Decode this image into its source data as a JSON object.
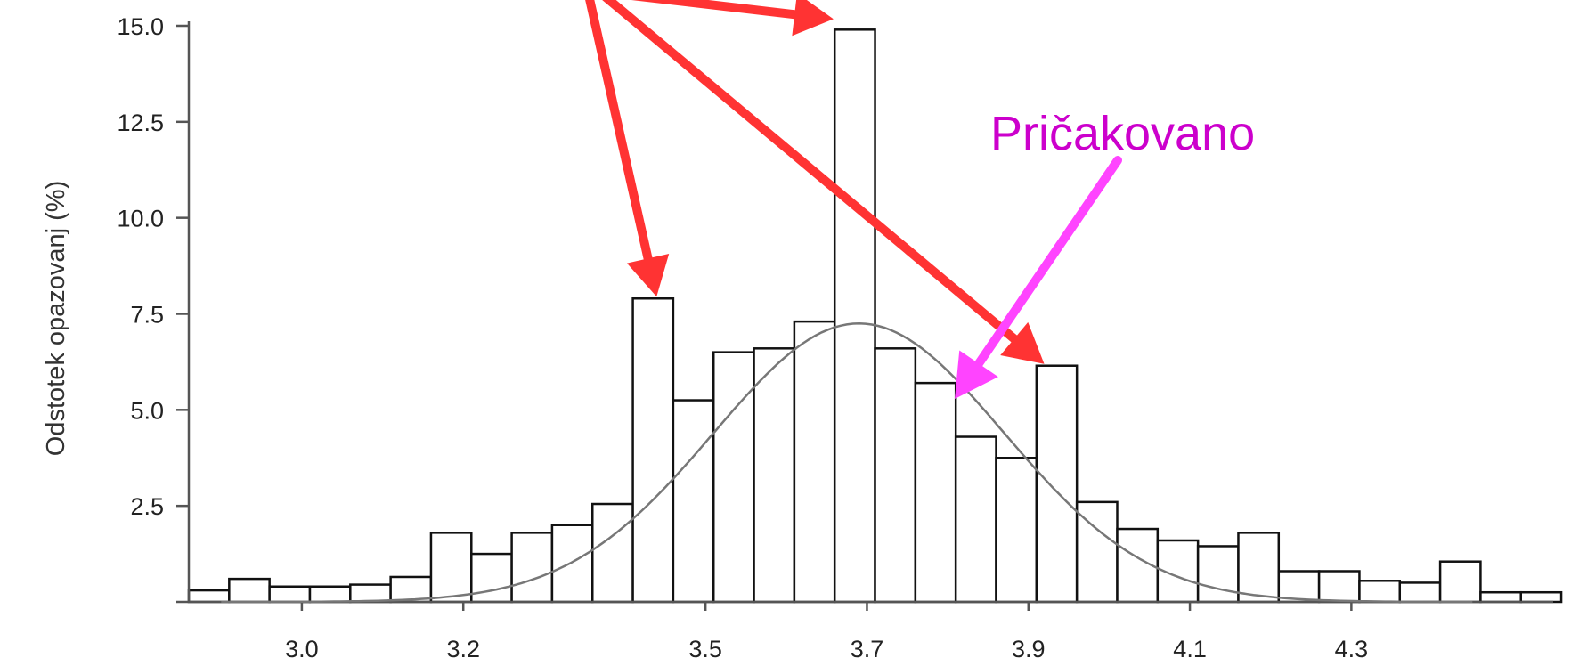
{
  "chart_data": {
    "type": "bar",
    "ylabel": "Odstotek opazovanj (%)",
    "xlabel": "",
    "title": "",
    "ylim": [
      0,
      15
    ],
    "xlim": [
      2.86,
      4.55
    ],
    "grid": false,
    "legend": "none",
    "yticks": [
      "15.0",
      "12.5",
      "10.0",
      "7.5",
      "5.0",
      "2.5"
    ],
    "xticks": [
      {
        "label": "3.0",
        "x": 3.0
      },
      {
        "label": "3.2",
        "x": 3.2
      },
      {
        "label": "3.5",
        "x": 3.5
      },
      {
        "label": "3.7",
        "x": 3.7
      },
      {
        "label": "3.9",
        "x": 3.9
      },
      {
        "label": "4.1",
        "x": 4.1
      },
      {
        "label": "4.3",
        "x": 4.3
      }
    ],
    "bin_width": 0.05,
    "bin_start": 2.86,
    "values": [
      0.3,
      0.6,
      0.4,
      0.4,
      0.45,
      0.65,
      1.8,
      1.25,
      1.8,
      2.0,
      2.55,
      7.9,
      5.25,
      6.5,
      6.6,
      7.3,
      14.9,
      6.6,
      5.7,
      4.3,
      3.75,
      6.15,
      2.6,
      1.9,
      1.6,
      1.45,
      1.8,
      0.8,
      0.8,
      0.55,
      0.5,
      1.05,
      0.25,
      0.25
    ],
    "expected_curve": {
      "type": "normal",
      "peak": 7.25,
      "mean": 3.69,
      "sd": 0.18
    },
    "annotations": [
      {
        "text": "Pričakovano",
        "color": "#cc00cc"
      }
    ],
    "colors": {
      "bars": "#111111",
      "curve": "#777777",
      "red_arrows": "#ff3333",
      "magenta_arrow": "#ff44ff",
      "annotation_text": "#cc00cc"
    }
  }
}
